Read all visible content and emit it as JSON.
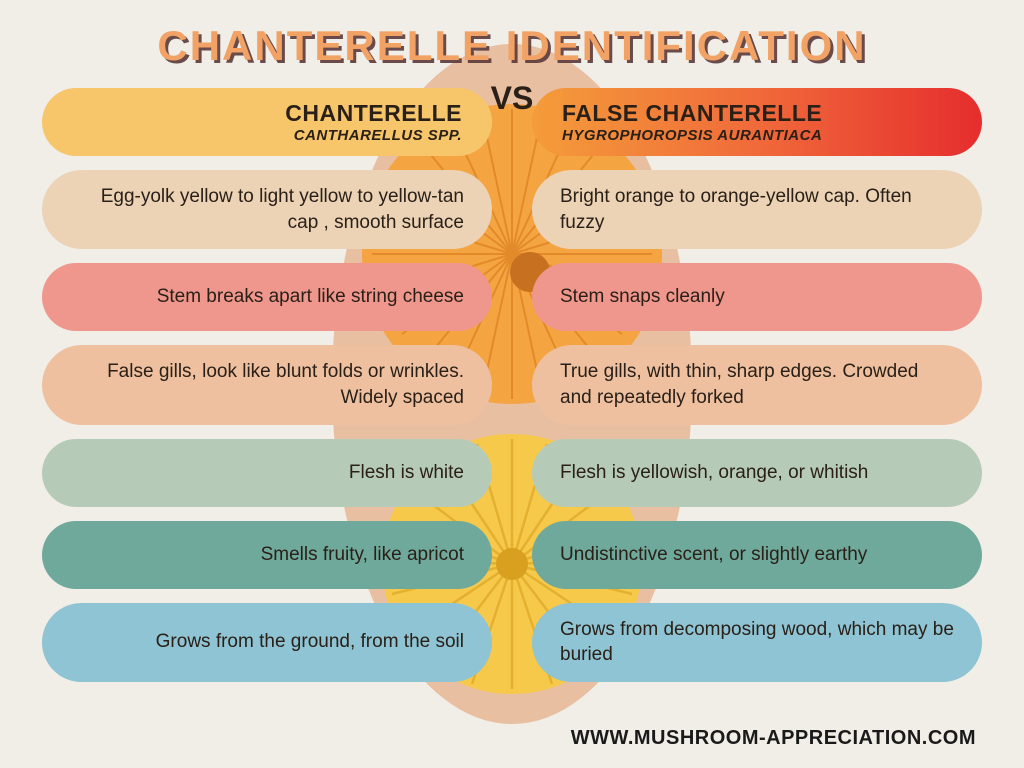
{
  "title": "CHANTERELLE IDENTIFICATION",
  "vs_label": "VS",
  "left_header": {
    "name": "CHANTERELLE",
    "scientific": "CANTHARELLUS SPP."
  },
  "right_header": {
    "name": "FALSE CHANTERELLE",
    "scientific": "HYGROPHOROPSIS AURANTIACA"
  },
  "rows": [
    {
      "left": "Egg-yolk yellow to light yellow to yellow-tan cap , smooth surface",
      "right": "Bright orange to orange-yellow cap. Often fuzzy",
      "color": "#ecd3b6"
    },
    {
      "left": "Stem breaks apart like string cheese",
      "right": "Stem snaps cleanly",
      "color": "#ef968d"
    },
    {
      "left": "False gills, look like blunt folds or wrinkles. Widely spaced",
      "right": "True gills, with thin, sharp edges. Crowded and repeatedly forked",
      "color": "#eec09f"
    },
    {
      "left": "Flesh is white",
      "right": "Flesh is yellowish, orange, or whitish",
      "color": "#b6cbb7"
    },
    {
      "left": "Smells fruity, like apricot",
      "right": "Undistinctive scent, or slightly earthy",
      "color": "#6fa99b"
    },
    {
      "left": "Grows from the ground, from the soil",
      "right": "Grows from decomposing wood, which may be buried",
      "color": "#8ec4d3"
    }
  ],
  "header_left_bg": "#f7c66b",
  "header_right_gradient": [
    "#f49c3a",
    "#f06a3a",
    "#e52d2d"
  ],
  "background_color": "#f0eee7",
  "title_color": "#f1a264",
  "title_shadow_color": "#5a3a3a",
  "text_color": "#2a2018",
  "pill_radius": 40,
  "font_sizes": {
    "title": 42,
    "header_name": 23,
    "header_sci": 15,
    "vs": 32,
    "pill": 19,
    "footer": 20
  },
  "footer": "WWW.MUSHROOM-APPRECIATION.COM",
  "mushroom_illustration": {
    "top_color": "#f5a442",
    "bottom_color": "#f6c94a",
    "hand_color": "#e8b99a"
  }
}
